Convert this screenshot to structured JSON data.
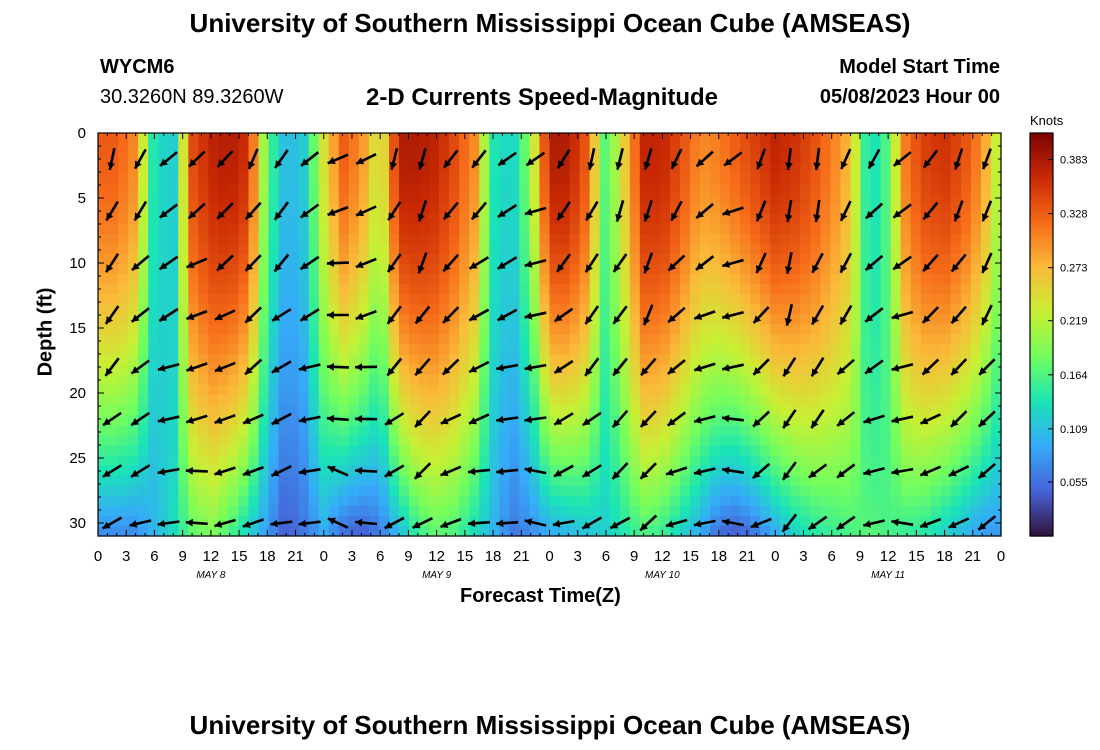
{
  "header": {
    "title": "University of Southern Mississippi Ocean Cube (AMSEAS)",
    "station": "WYCM6",
    "coords": "30.3260N  89.3260W",
    "subtitle": "2-D Currents Speed-Magnitude",
    "model_start_label": "Model Start Time",
    "model_start_value": "05/08/2023 Hour 00"
  },
  "footer": {
    "title": "University of Southern Mississippi Ocean Cube (AMSEAS)"
  },
  "chart_data": {
    "type": "heatmap",
    "title": "2-D Currents Speed-Magnitude",
    "xlabel": "Forecast Time(Z)",
    "ylabel": "Depth (ft)",
    "colorbar_label": "Knots",
    "x_tick_labels": [
      "0",
      "3",
      "6",
      "9",
      "12",
      "15",
      "18",
      "21",
      "0",
      "3",
      "6",
      "9",
      "12",
      "15",
      "18",
      "21",
      "0",
      "3",
      "6",
      "9",
      "12",
      "15",
      "18",
      "21",
      "0",
      "3",
      "6",
      "9",
      "12",
      "15",
      "18",
      "21",
      "0"
    ],
    "x_range_hours": [
      0,
      96
    ],
    "day_labels": [
      {
        "text": "MAY 8",
        "hour": 12
      },
      {
        "text": "MAY 9",
        "hour": 36
      },
      {
        "text": "MAY 10",
        "hour": 60
      },
      {
        "text": "MAY 11",
        "hour": 84
      }
    ],
    "y_tick_labels": [
      "0",
      "5",
      "10",
      "15",
      "20",
      "25",
      "30"
    ],
    "y_range_ft": [
      0,
      31
    ],
    "y_inverted": true,
    "colorbar_ticks": [
      "0.383",
      "0.328",
      "0.273",
      "0.219",
      "0.164",
      "0.109",
      "0.055"
    ],
    "colorbar_range": [
      0.0,
      0.41
    ],
    "colormap": [
      "#30123b",
      "#4662d7",
      "#36aaf9",
      "#1ae4b6",
      "#72fe5e",
      "#c8ef34",
      "#faba39",
      "#f66b19",
      "#ca2a04",
      "#7a0403"
    ],
    "time_hours": [
      0,
      2,
      4,
      6,
      8,
      10,
      12,
      14,
      16,
      18,
      20,
      22,
      24,
      26,
      28,
      30,
      32,
      34,
      36,
      38,
      40,
      42,
      44,
      46,
      48,
      50,
      52,
      54,
      56,
      58,
      60,
      62,
      64,
      66,
      68,
      70,
      72,
      74,
      76,
      78,
      80,
      82,
      84,
      86,
      88,
      90,
      92,
      94,
      96
    ],
    "surface_speed_knots": [
      0.33,
      0.33,
      0.3,
      0.13,
      0.12,
      0.34,
      0.37,
      0.38,
      0.36,
      0.17,
      0.1,
      0.12,
      0.24,
      0.33,
      0.3,
      0.22,
      0.38,
      0.38,
      0.37,
      0.34,
      0.3,
      0.14,
      0.12,
      0.2,
      0.38,
      0.38,
      0.33,
      0.16,
      0.26,
      0.37,
      0.37,
      0.34,
      0.3,
      0.31,
      0.33,
      0.35,
      0.37,
      0.36,
      0.34,
      0.31,
      0.27,
      0.12,
      0.17,
      0.32,
      0.35,
      0.36,
      0.34,
      0.3,
      0.2
    ],
    "bottom_speed_knots": [
      0.07,
      0.07,
      0.07,
      0.1,
      0.13,
      0.17,
      0.19,
      0.16,
      0.12,
      0.08,
      0.04,
      0.06,
      0.09,
      0.05,
      0.04,
      0.06,
      0.1,
      0.15,
      0.17,
      0.16,
      0.13,
      0.1,
      0.06,
      0.07,
      0.09,
      0.1,
      0.11,
      0.12,
      0.14,
      0.16,
      0.15,
      0.12,
      0.09,
      0.05,
      0.04,
      0.06,
      0.09,
      0.12,
      0.14,
      0.15,
      0.16,
      0.17,
      0.16,
      0.15,
      0.14,
      0.12,
      0.1,
      0.08,
      0.08
    ],
    "arrow_rows_ft": [
      2,
      6,
      10,
      14,
      18,
      22,
      26,
      30
    ],
    "arrow_spacing_hours": 3,
    "arrow_directions_deg": [
      200,
      210,
      225,
      230,
      220,
      210,
      215,
      225,
      250,
      240,
      200,
      195,
      210,
      220,
      230,
      240,
      210,
      200,
      195,
      190,
      210,
      225,
      240,
      200,
      180,
      190,
      200,
      215,
      230,
      210,
      200,
      195
    ]
  }
}
